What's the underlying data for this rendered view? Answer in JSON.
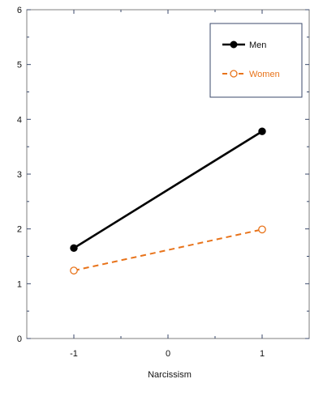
{
  "chart_data": {
    "type": "line",
    "xlabel": "Narcissism",
    "ylabel": "",
    "title": "",
    "xlim": [
      -1.5,
      1.5
    ],
    "ylim": [
      0,
      6
    ],
    "x_ticks": [
      -1,
      0,
      1
    ],
    "x_tick_labels": [
      "-1",
      "0",
      "1"
    ],
    "y_ticks": [
      0,
      1,
      2,
      3,
      4,
      5,
      6
    ],
    "y_tick_labels": [
      "0",
      "1",
      "2",
      "3",
      "4",
      "5",
      "6"
    ],
    "x": [
      -1,
      1
    ],
    "series": [
      {
        "name": "Men",
        "values": [
          1.65,
          3.78
        ],
        "color": "#000000",
        "line_style": "solid",
        "marker": "filled-circle"
      },
      {
        "name": "Women",
        "values": [
          1.24,
          1.99
        ],
        "color": "#e8731a",
        "line_style": "dashed",
        "marker": "open-circle"
      }
    ],
    "legend_position": "top-right",
    "grid": false
  }
}
